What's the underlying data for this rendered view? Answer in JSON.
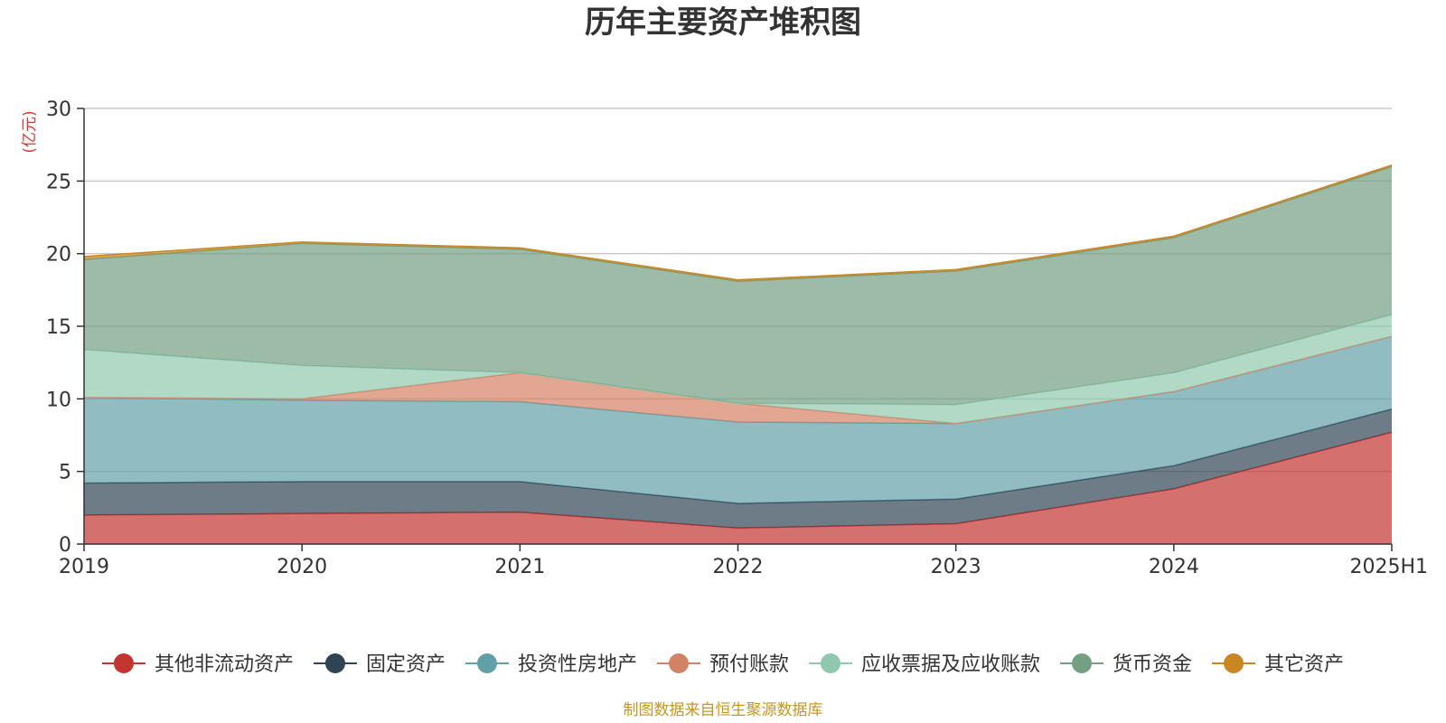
{
  "chart_data": {
    "type": "area",
    "stacked": true,
    "title": "历年主要资产堆积图",
    "unit_label": "(亿元)",
    "x": [
      "2019",
      "2020",
      "2021",
      "2022",
      "2023",
      "2024",
      "2025H1"
    ],
    "ylim": [
      0,
      30
    ],
    "yticks": [
      0,
      5,
      10,
      15,
      20,
      25,
      30
    ],
    "grid": true,
    "legend_position": "bottom",
    "series": [
      {
        "name": "其他非流动资产",
        "color": "#c23531",
        "values": [
          2.0,
          2.1,
          2.2,
          1.1,
          1.4,
          3.8,
          7.7
        ]
      },
      {
        "name": "固定资产",
        "color": "#2f4554",
        "values": [
          2.2,
          2.2,
          2.1,
          1.7,
          1.7,
          1.6,
          1.6
        ]
      },
      {
        "name": "投资性房地产",
        "color": "#61a0a8",
        "values": [
          5.9,
          5.6,
          5.5,
          5.6,
          5.2,
          5.1,
          5.0
        ]
      },
      {
        "name": "预付账款",
        "color": "#d48265",
        "values": [
          0.0,
          0.1,
          2.0,
          1.3,
          0.0,
          0.0,
          0.0
        ]
      },
      {
        "name": "应收票据及应收账款",
        "color": "#91c7ae",
        "values": [
          3.3,
          2.3,
          0.0,
          0.0,
          1.3,
          1.3,
          1.5
        ]
      },
      {
        "name": "货币资金",
        "color": "#749f83",
        "values": [
          6.2,
          8.4,
          8.5,
          8.4,
          9.2,
          9.3,
          10.2
        ]
      },
      {
        "name": "其它资产",
        "color": "#ca8622",
        "values": [
          0.2,
          0.1,
          0.1,
          0.1,
          0.1,
          0.1,
          0.1
        ]
      }
    ]
  },
  "source_note": "制图数据来自恒生聚源数据库"
}
